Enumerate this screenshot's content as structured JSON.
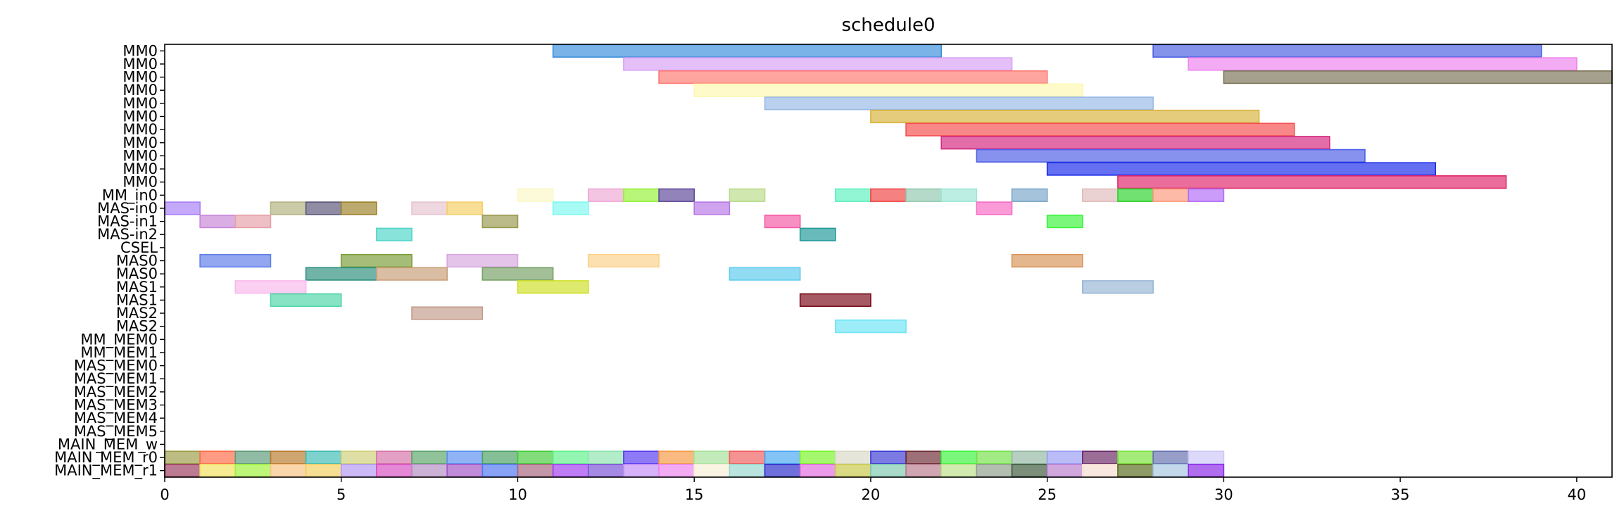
{
  "chart_data": {
    "type": "gantt",
    "title": "schedule0",
    "xlabel": "",
    "ylabel": "",
    "xlim": [
      0,
      41
    ],
    "x_ticks": [
      0,
      5,
      10,
      15,
      20,
      25,
      30,
      35,
      40
    ],
    "grid": false,
    "rows": [
      "MM0",
      "MM0",
      "MM0",
      "MM0",
      "MM0",
      "MM0",
      "MM0",
      "MM0",
      "MM0",
      "MM0",
      "MM0",
      "MM_in0",
      "MAS-in0",
      "MAS-in1",
      "MAS-in2",
      "CSEL",
      "MAS0",
      "MAS0",
      "MAS1",
      "MAS1",
      "MAS2",
      "MAS2",
      "MM_MEM0",
      "MM_MEM1",
      "MAS_MEM0",
      "MAS_MEM1",
      "MAS_MEM2",
      "MAS_MEM3",
      "MAS_MEM4",
      "MAS_MEM5",
      "MAIN_MEM_w",
      "MAIN_MEM_r0",
      "MAIN_MEM_r1"
    ],
    "bars": [
      {
        "row": 0,
        "start": 11,
        "end": 22,
        "color": "#3b8fdb"
      },
      {
        "row": 0,
        "start": 28,
        "end": 39,
        "color": "#4a5fe0"
      },
      {
        "row": 1,
        "start": 13,
        "end": 24,
        "color": "#d8a0f5"
      },
      {
        "row": 1,
        "start": 29,
        "end": 40,
        "color": "#ee84ee"
      },
      {
        "row": 2,
        "start": 14,
        "end": 25,
        "color": "#ff7a72"
      },
      {
        "row": 2,
        "start": 30,
        "end": 41,
        "color": "#7b7357"
      },
      {
        "row": 3,
        "start": 15,
        "end": 26,
        "color": "#fdf7b0"
      },
      {
        "row": 4,
        "start": 17,
        "end": 28,
        "color": "#98b9e6"
      },
      {
        "row": 5,
        "start": 20,
        "end": 31,
        "color": "#d9b43f"
      },
      {
        "row": 6,
        "start": 21,
        "end": 32,
        "color": "#f4504f"
      },
      {
        "row": 7,
        "start": 22,
        "end": 33,
        "color": "#d6287f"
      },
      {
        "row": 8,
        "start": 23,
        "end": 34,
        "color": "#4d5fe6"
      },
      {
        "row": 9,
        "start": 25,
        "end": 36,
        "color": "#1a2cea"
      },
      {
        "row": 10,
        "start": 27,
        "end": 38,
        "color": "#e0286b"
      },
      {
        "row": 11,
        "start": 10,
        "end": 11,
        "color": "#fbf7c7"
      },
      {
        "row": 11,
        "start": 12,
        "end": 13,
        "color": "#efa8d6"
      },
      {
        "row": 11,
        "start": 13,
        "end": 14,
        "color": "#95f23a"
      },
      {
        "row": 11,
        "start": 14,
        "end": 15,
        "color": "#5f4a9a"
      },
      {
        "row": 11,
        "start": 16,
        "end": 17,
        "color": "#b9db8b"
      },
      {
        "row": 11,
        "start": 19,
        "end": 20,
        "color": "#5ef2c0"
      },
      {
        "row": 11,
        "start": 20,
        "end": 21,
        "color": "#f24646"
      },
      {
        "row": 11,
        "start": 21,
        "end": 22,
        "color": "#93c9b0"
      },
      {
        "row": 11,
        "start": 22,
        "end": 23,
        "color": "#9ee6d6"
      },
      {
        "row": 11,
        "start": 24,
        "end": 25,
        "color": "#7aa7c9"
      },
      {
        "row": 11,
        "start": 26,
        "end": 27,
        "color": "#e0bcbc"
      },
      {
        "row": 11,
        "start": 27,
        "end": 28,
        "color": "#2ed42e"
      },
      {
        "row": 11,
        "start": 28,
        "end": 29,
        "color": "#fc9a7d"
      },
      {
        "row": 11,
        "start": 29,
        "end": 30,
        "color": "#b36df7"
      },
      {
        "row": 12,
        "start": 0,
        "end": 1,
        "color": "#a87ff7"
      },
      {
        "row": 12,
        "start": 3,
        "end": 4,
        "color": "#b4b37f"
      },
      {
        "row": 12,
        "start": 4,
        "end": 5,
        "color": "#5b5579"
      },
      {
        "row": 12,
        "start": 5,
        "end": 6,
        "color": "#9c8129"
      },
      {
        "row": 12,
        "start": 7,
        "end": 8,
        "color": "#e6c4cf"
      },
      {
        "row": 12,
        "start": 8,
        "end": 9,
        "color": "#f5cf66"
      },
      {
        "row": 12,
        "start": 11,
        "end": 12,
        "color": "#7ff7ef"
      },
      {
        "row": 12,
        "start": 15,
        "end": 16,
        "color": "#b878e6"
      },
      {
        "row": 12,
        "start": 23,
        "end": 24,
        "color": "#f76bc5"
      },
      {
        "row": 13,
        "start": 1,
        "end": 2,
        "color": "#c888d9"
      },
      {
        "row": 13,
        "start": 2,
        "end": 3,
        "color": "#e6a0a8"
      },
      {
        "row": 13,
        "start": 9,
        "end": 10,
        "color": "#999950"
      },
      {
        "row": 13,
        "start": 17,
        "end": 18,
        "color": "#f55aa6"
      },
      {
        "row": 13,
        "start": 25,
        "end": 26,
        "color": "#3cf53c"
      },
      {
        "row": 14,
        "start": 6,
        "end": 7,
        "color": "#4fd6c8"
      },
      {
        "row": 14,
        "start": 18,
        "end": 19,
        "color": "#229999"
      },
      {
        "row": 16,
        "start": 1,
        "end": 3,
        "color": "#5f7ee8"
      },
      {
        "row": 16,
        "start": 5,
        "end": 7,
        "color": "#7c9e3a"
      },
      {
        "row": 16,
        "start": 8,
        "end": 10,
        "color": "#d9a8e0"
      },
      {
        "row": 16,
        "start": 12,
        "end": 14,
        "color": "#fcd28a"
      },
      {
        "row": 16,
        "start": 24,
        "end": 26,
        "color": "#d9955a"
      },
      {
        "row": 17,
        "start": 4,
        "end": 6,
        "color": "#2d8f7e"
      },
      {
        "row": 17,
        "start": 6,
        "end": 8,
        "color": "#c99f77"
      },
      {
        "row": 17,
        "start": 9,
        "end": 11,
        "color": "#76a165"
      },
      {
        "row": 17,
        "start": 16,
        "end": 18,
        "color": "#5ecbed"
      },
      {
        "row": 18,
        "start": 2,
        "end": 4,
        "color": "#f9b8ec"
      },
      {
        "row": 18,
        "start": 10,
        "end": 12,
        "color": "#cfe028"
      },
      {
        "row": 18,
        "start": 26,
        "end": 28,
        "color": "#98b6d6"
      },
      {
        "row": 19,
        "start": 3,
        "end": 5,
        "color": "#4ed6a8"
      },
      {
        "row": 19,
        "start": 18,
        "end": 20,
        "color": "#7a0c1a"
      },
      {
        "row": 20,
        "start": 7,
        "end": 9,
        "color": "#c49c8c"
      },
      {
        "row": 21,
        "start": 19,
        "end": 21,
        "color": "#6fe5f5"
      },
      {
        "row": 31,
        "start": 0,
        "end": 1,
        "color": "#9c9c48"
      },
      {
        "row": 31,
        "start": 1,
        "end": 2,
        "color": "#ff6b47"
      },
      {
        "row": 31,
        "start": 2,
        "end": 3,
        "color": "#5f9b7a"
      },
      {
        "row": 31,
        "start": 3,
        "end": 4,
        "color": "#b87c2e"
      },
      {
        "row": 31,
        "start": 4,
        "end": 5,
        "color": "#3fbcb5"
      },
      {
        "row": 31,
        "start": 5,
        "end": 6,
        "color": "#cfcf7a"
      },
      {
        "row": 31,
        "start": 6,
        "end": 7,
        "color": "#d673a8"
      },
      {
        "row": 31,
        "start": 7,
        "end": 8,
        "color": "#5ca66a"
      },
      {
        "row": 31,
        "start": 8,
        "end": 9,
        "color": "#5a8ff0"
      },
      {
        "row": 31,
        "start": 9,
        "end": 10,
        "color": "#4ba066"
      },
      {
        "row": 31,
        "start": 10,
        "end": 11,
        "color": "#45cc3a"
      },
      {
        "row": 31,
        "start": 11,
        "end": 12,
        "color": "#5ef28a"
      },
      {
        "row": 31,
        "start": 12,
        "end": 13,
        "color": "#8ee3b0"
      },
      {
        "row": 31,
        "start": 13,
        "end": 14,
        "color": "#5a3bf0"
      },
      {
        "row": 31,
        "start": 14,
        "end": 15,
        "color": "#f59a45"
      },
      {
        "row": 31,
        "start": 15,
        "end": 16,
        "color": "#a7e29a"
      },
      {
        "row": 31,
        "start": 16,
        "end": 17,
        "color": "#f05e5e"
      },
      {
        "row": 31,
        "start": 17,
        "end": 18,
        "color": "#4aa6f0"
      },
      {
        "row": 31,
        "start": 18,
        "end": 19,
        "color": "#7af528"
      },
      {
        "row": 31,
        "start": 19,
        "end": 20,
        "color": "#d9d9c8"
      },
      {
        "row": 31,
        "start": 20,
        "end": 21,
        "color": "#3c3cd6"
      },
      {
        "row": 31,
        "start": 21,
        "end": 22,
        "color": "#6e2c36"
      },
      {
        "row": 31,
        "start": 22,
        "end": 23,
        "color": "#3cf53c"
      },
      {
        "row": 31,
        "start": 23,
        "end": 24,
        "color": "#74e04a"
      },
      {
        "row": 31,
        "start": 24,
        "end": 25,
        "color": "#93b8a2"
      },
      {
        "row": 31,
        "start": 25,
        "end": 26,
        "color": "#9a9cf5"
      },
      {
        "row": 31,
        "start": 26,
        "end": 27,
        "color": "#6b2a66"
      },
      {
        "row": 31,
        "start": 27,
        "end": 28,
        "color": "#7ae23a"
      },
      {
        "row": 31,
        "start": 28,
        "end": 29,
        "color": "#6672b0"
      },
      {
        "row": 31,
        "start": 29,
        "end": 30,
        "color": "#ccc7f7"
      },
      {
        "row": 32,
        "start": 0,
        "end": 1,
        "color": "#9c3c5f"
      },
      {
        "row": 32,
        "start": 1,
        "end": 2,
        "color": "#f2e060"
      },
      {
        "row": 32,
        "start": 2,
        "end": 3,
        "color": "#9ef23a"
      },
      {
        "row": 32,
        "start": 3,
        "end": 4,
        "color": "#f9c285"
      },
      {
        "row": 32,
        "start": 4,
        "end": 5,
        "color": "#f2d060"
      },
      {
        "row": 32,
        "start": 5,
        "end": 6,
        "color": "#b39af0"
      },
      {
        "row": 32,
        "start": 6,
        "end": 7,
        "color": "#d94fc2"
      },
      {
        "row": 32,
        "start": 7,
        "end": 8,
        "color": "#b38ec2"
      },
      {
        "row": 32,
        "start": 8,
        "end": 9,
        "color": "#a255c9"
      },
      {
        "row": 32,
        "start": 9,
        "end": 10,
        "color": "#5078f0"
      },
      {
        "row": 32,
        "start": 10,
        "end": 11,
        "color": "#a8667f"
      },
      {
        "row": 32,
        "start": 11,
        "end": 12,
        "color": "#a03ef0"
      },
      {
        "row": 32,
        "start": 12,
        "end": 13,
        "color": "#7b52d6"
      },
      {
        "row": 32,
        "start": 13,
        "end": 14,
        "color": "#c38ef5"
      },
      {
        "row": 32,
        "start": 14,
        "end": 15,
        "color": "#ee84ee"
      },
      {
        "row": 32,
        "start": 15,
        "end": 16,
        "color": "#f7efd9"
      },
      {
        "row": 32,
        "start": 16,
        "end": 17,
        "color": "#9ad9d0"
      },
      {
        "row": 32,
        "start": 17,
        "end": 18,
        "color": "#2c2ccc"
      },
      {
        "row": 32,
        "start": 18,
        "end": 19,
        "color": "#e36ae0"
      },
      {
        "row": 32,
        "start": 19,
        "end": 20,
        "color": "#c9c94a"
      },
      {
        "row": 32,
        "start": 20,
        "end": 21,
        "color": "#7dc9b0"
      },
      {
        "row": 32,
        "start": 21,
        "end": 22,
        "color": "#b87c8c"
      },
      {
        "row": 32,
        "start": 22,
        "end": 23,
        "color": "#b9e08a"
      },
      {
        "row": 32,
        "start": 23,
        "end": 24,
        "color": "#8f9f8c"
      },
      {
        "row": 32,
        "start": 24,
        "end": 25,
        "color": "#3c5a3c"
      },
      {
        "row": 32,
        "start": 25,
        "end": 26,
        "color": "#b97fcf"
      },
      {
        "row": 32,
        "start": 26,
        "end": 27,
        "color": "#f5dccf"
      },
      {
        "row": 32,
        "start": 27,
        "end": 28,
        "color": "#5a6b1e"
      },
      {
        "row": 32,
        "start": 28,
        "end": 29,
        "color": "#a6c6e0"
      },
      {
        "row": 32,
        "start": 29,
        "end": 30,
        "color": "#8a2ae8"
      }
    ]
  }
}
